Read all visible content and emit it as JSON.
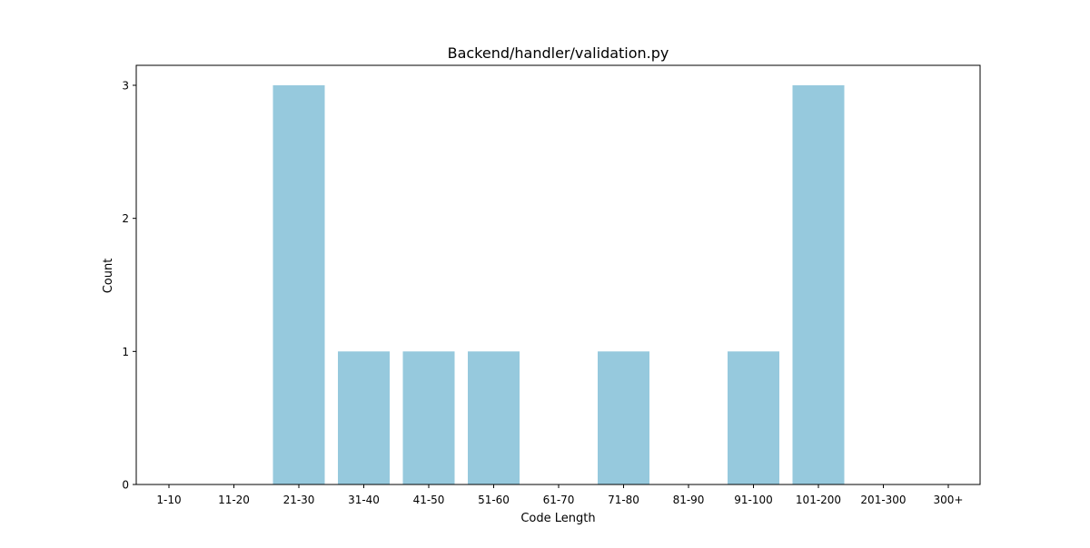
{
  "chart_data": {
    "type": "bar",
    "title": "Backend/handler/validation.py",
    "xlabel": "Code Length",
    "ylabel": "Count",
    "categories": [
      "1-10",
      "11-20",
      "21-30",
      "31-40",
      "41-50",
      "51-60",
      "61-70",
      "71-80",
      "81-90",
      "91-100",
      "101-200",
      "201-300",
      "300+"
    ],
    "values": [
      0,
      0,
      3,
      1,
      1,
      1,
      0,
      1,
      0,
      1,
      3,
      0,
      0
    ],
    "yticks": [
      0,
      1,
      2,
      3
    ],
    "ylim": [
      0,
      3.15
    ],
    "grid": false,
    "legend": "none",
    "bar_color": "#96c9dd"
  }
}
